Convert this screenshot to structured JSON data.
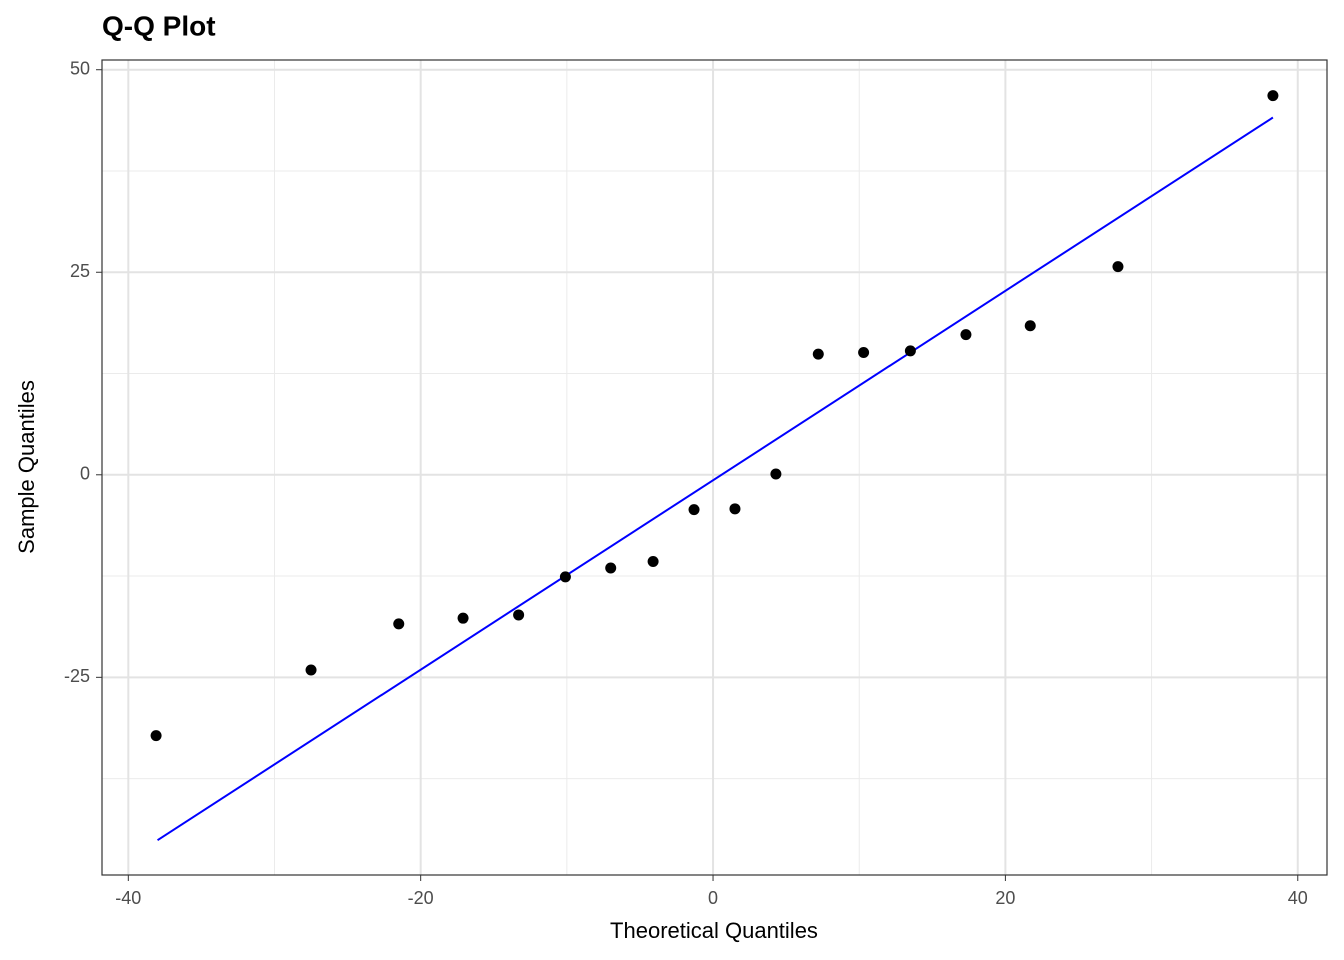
{
  "chart_data": {
    "type": "scatter",
    "title": "Q-Q Plot",
    "x_label": "Theoretical Quantiles",
    "y_label": "Sample Quantiles",
    "series": [
      {
        "color": "#000000",
        "x": [
          -38.1,
          -27.5,
          -21.5,
          -17.1,
          -13.3,
          -10.1,
          -7.0,
          -4.1,
          -1.3,
          1.5,
          4.3,
          7.2,
          10.3,
          13.5,
          17.3,
          21.7,
          27.7,
          38.3
        ],
        "values": [
          -32.2,
          -24.1,
          -18.4,
          -17.7,
          -17.3,
          -12.6,
          -11.5,
          -10.7,
          -4.3,
          -4.2,
          0.1,
          14.9,
          15.1,
          15.3,
          17.3,
          18.4,
          25.7,
          46.8
        ]
      }
    ],
    "reference_line": {
      "color": "#0000ff",
      "x": [
        -38.0,
        38.3
      ],
      "values": [
        -45.1,
        44.1
      ]
    },
    "xlim": [
      -41.8,
      42
    ],
    "ylim": [
      -49.4,
      51.2
    ],
    "xticks": [
      -40,
      -20,
      0,
      20,
      40
    ],
    "yticks": [
      -25,
      0,
      25,
      50
    ],
    "x_minor_grid": [
      -30,
      -10,
      10,
      30
    ],
    "y_minor_grid": [
      -37.5,
      -12.5,
      12.5,
      37.5
    ],
    "grid": true
  }
}
